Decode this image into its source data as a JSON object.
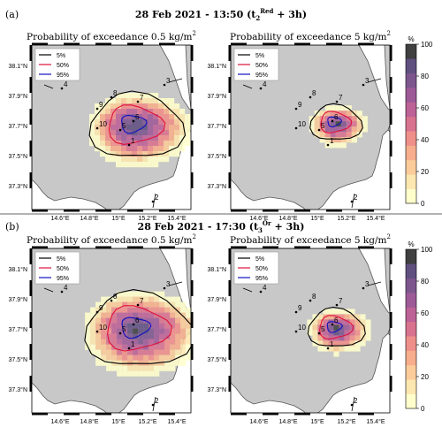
{
  "figure": {
    "divider_color": "#666666",
    "panels": [
      {
        "label": "(a)",
        "title_main": "28 Feb 2021 - 13:50 (t",
        "title_sub": "2",
        "title_sup": "Red",
        "title_tail": " + 3h)",
        "maps": [
          {
            "title_main": "Probability of exceedance 0.5 kg/m",
            "title_sup": "2",
            "plume_scale": 1.0,
            "plume_dx": 0,
            "plume_dy": 0
          },
          {
            "title_main": "Probability of exceedance 5 kg/m",
            "title_sup": "2",
            "plume_scale": 0.55,
            "plume_dx": 3,
            "plume_dy": -2
          }
        ]
      },
      {
        "label": "(b)",
        "title_main": "28 Feb 2021 - 17:30 (t",
        "title_sub": "3",
        "title_sup": "Or",
        "title_tail": " + 3h)",
        "maps": [
          {
            "title_main": "Probability of exceedance 0.5 kg/m",
            "title_sup": "2",
            "plume_scale": 1.15,
            "plume_dx": 2,
            "plume_dy": 0
          },
          {
            "title_main": "Probability of exceedance 5 kg/m",
            "title_sup": "2",
            "plume_scale": 0.6,
            "plume_dx": 3,
            "plume_dy": 0
          }
        ]
      }
    ]
  },
  "map_axes": {
    "lat_ticks": [
      "38.1°N",
      "37.9°N",
      "37.7°N",
      "37.5°N",
      "37.3°N"
    ],
    "lon_ticks": [
      "14.6°E",
      "14.8°E",
      "15°E",
      "15.2°E",
      "15.4°E"
    ],
    "land_color": "#c8c8c8",
    "coast_color": "#555555"
  },
  "legend": {
    "items": [
      {
        "label": "5%",
        "color": "#000000"
      },
      {
        "label": "50%",
        "color": "#e0103a"
      },
      {
        "label": "95%",
        "color": "#1010c0"
      }
    ]
  },
  "points": [
    {
      "id": "1"
    },
    {
      "id": "2"
    },
    {
      "id": "3"
    },
    {
      "id": "4"
    },
    {
      "id": "5"
    },
    {
      "id": "6"
    },
    {
      "id": "7"
    },
    {
      "id": "8"
    },
    {
      "id": "9"
    },
    {
      "id": "10"
    }
  ],
  "colorbar": {
    "unit": "%",
    "ticks": [
      "0",
      "20",
      "40",
      "60",
      "80",
      "100"
    ],
    "colors": [
      "#ffffcc",
      "#fde7b0",
      "#fbcc9a",
      "#f7ae8c",
      "#ef8f8a",
      "#d8728f",
      "#bd6296",
      "#9d5a97",
      "#7d568e",
      "#605080",
      "#404040"
    ]
  }
}
